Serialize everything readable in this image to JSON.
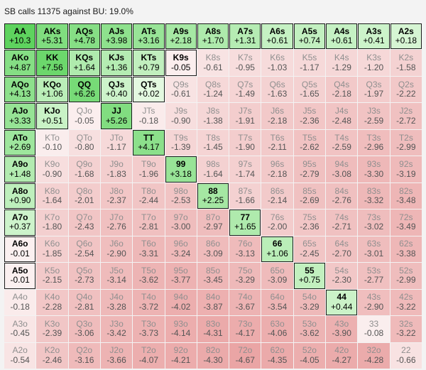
{
  "title": "SB calls 11375 against BU: 19.0%",
  "rows": [
    [
      [
        "AA",
        "+10.3",
        1
      ],
      [
        "AKs",
        "+5.31",
        1
      ],
      [
        "AQs",
        "+4.78",
        1
      ],
      [
        "AJs",
        "+3.98",
        1
      ],
      [
        "ATs",
        "+3.16",
        1
      ],
      [
        "A9s",
        "+2.18",
        1
      ],
      [
        "A8s",
        "+1.70",
        1
      ],
      [
        "A7s",
        "+1.31",
        1
      ],
      [
        "A6s",
        "+0.61",
        1
      ],
      [
        "A5s",
        "+0.74",
        1
      ],
      [
        "A4s",
        "+0.61",
        1
      ],
      [
        "A3s",
        "+0.41",
        1
      ],
      [
        "A2s",
        "+0.18",
        1
      ]
    ],
    [
      [
        "AKo",
        "+4.87",
        1
      ],
      [
        "KK",
        "+7.56",
        1
      ],
      [
        "KQs",
        "+1.64",
        1
      ],
      [
        "KJs",
        "+1.36",
        1
      ],
      [
        "KTs",
        "+0.79",
        1
      ],
      [
        "K9s",
        "-0.05",
        1
      ],
      [
        "K8s",
        "-0.61",
        0
      ],
      [
        "K7s",
        "-0.95",
        0
      ],
      [
        "K6s",
        "-1.03",
        0
      ],
      [
        "K5s",
        "-1.17",
        0
      ],
      [
        "K4s",
        "-1.29",
        0
      ],
      [
        "K3s",
        "-1.20",
        0
      ],
      [
        "K2s",
        "-1.58",
        0
      ]
    ],
    [
      [
        "AQo",
        "+4.13",
        1
      ],
      [
        "KQo",
        "+1.06",
        1
      ],
      [
        "QQ",
        "+6.26",
        1
      ],
      [
        "QJs",
        "+0.40",
        1
      ],
      [
        "QTs",
        "+0.02",
        1
      ],
      [
        "Q9s",
        "-0.61",
        0
      ],
      [
        "Q8s",
        "-1.24",
        0
      ],
      [
        "Q7s",
        "-1.49",
        0
      ],
      [
        "Q6s",
        "-1.63",
        0
      ],
      [
        "Q5s",
        "-1.65",
        0
      ],
      [
        "Q4s",
        "-2.18",
        0
      ],
      [
        "Q3s",
        "-1.97",
        0
      ],
      [
        "Q2s",
        "-2.22",
        0
      ]
    ],
    [
      [
        "AJo",
        "+3.33",
        1
      ],
      [
        "KJo",
        "+0.51",
        1
      ],
      [
        "QJo",
        "-0.05",
        0
      ],
      [
        "JJ",
        "+5.26",
        1
      ],
      [
        "JTs",
        "-0.18",
        0
      ],
      [
        "J9s",
        "-0.90",
        0
      ],
      [
        "J8s",
        "-1.38",
        0
      ],
      [
        "J7s",
        "-1.91",
        0
      ],
      [
        "J6s",
        "-2.18",
        0
      ],
      [
        "J5s",
        "-2.36",
        0
      ],
      [
        "J4s",
        "-2.48",
        0
      ],
      [
        "J3s",
        "-2.59",
        0
      ],
      [
        "J2s",
        "-2.72",
        0
      ]
    ],
    [
      [
        "ATo",
        "+2.69",
        1
      ],
      [
        "KTo",
        "-0.10",
        0
      ],
      [
        "QTo",
        "-0.80",
        0
      ],
      [
        "JTo",
        "-1.17",
        0
      ],
      [
        "TT",
        "+4.17",
        1
      ],
      [
        "T9s",
        "-1.39",
        0
      ],
      [
        "T8s",
        "-1.45",
        0
      ],
      [
        "T7s",
        "-1.90",
        0
      ],
      [
        "T6s",
        "-2.11",
        0
      ],
      [
        "T5s",
        "-2.62",
        0
      ],
      [
        "T4s",
        "-2.59",
        0
      ],
      [
        "T3s",
        "-2.96",
        0
      ],
      [
        "T2s",
        "-2.99",
        0
      ]
    ],
    [
      [
        "A9o",
        "+1.48",
        1
      ],
      [
        "K9o",
        "-0.90",
        0
      ],
      [
        "Q9o",
        "-1.68",
        0
      ],
      [
        "J9o",
        "-1.83",
        0
      ],
      [
        "T9o",
        "-1.96",
        0
      ],
      [
        "99",
        "+3.18",
        1
      ],
      [
        "98s",
        "-1.64",
        0
      ],
      [
        "97s",
        "-1.74",
        0
      ],
      [
        "96s",
        "-2.18",
        0
      ],
      [
        "95s",
        "-2.79",
        0
      ],
      [
        "94s",
        "-3.08",
        0
      ],
      [
        "93s",
        "-3.30",
        0
      ],
      [
        "92s",
        "-3.19",
        0
      ]
    ],
    [
      [
        "A8o",
        "+0.90",
        1
      ],
      [
        "K8o",
        "-1.64",
        0
      ],
      [
        "Q8o",
        "-2.01",
        0
      ],
      [
        "J8o",
        "-2.37",
        0
      ],
      [
        "T8o",
        "-2.44",
        0
      ],
      [
        "98o",
        "-2.53",
        0
      ],
      [
        "88",
        "+2.25",
        1
      ],
      [
        "87s",
        "-1.66",
        0
      ],
      [
        "86s",
        "-2.14",
        0
      ],
      [
        "85s",
        "-2.69",
        0
      ],
      [
        "84s",
        "-2.76",
        0
      ],
      [
        "83s",
        "-3.32",
        0
      ],
      [
        "82s",
        "-3.48",
        0
      ]
    ],
    [
      [
        "A7o",
        "+0.37",
        1
      ],
      [
        "K7o",
        "-1.80",
        0
      ],
      [
        "Q7o",
        "-2.43",
        0
      ],
      [
        "J7o",
        "-2.76",
        0
      ],
      [
        "T7o",
        "-2.81",
        0
      ],
      [
        "97o",
        "-3.00",
        0
      ],
      [
        "87o",
        "-2.97",
        0
      ],
      [
        "77",
        "+1.65",
        1
      ],
      [
        "76s",
        "-2.00",
        0
      ],
      [
        "75s",
        "-2.36",
        0
      ],
      [
        "74s",
        "-2.71",
        0
      ],
      [
        "73s",
        "-3.02",
        0
      ],
      [
        "72s",
        "-3.49",
        0
      ]
    ],
    [
      [
        "A6o",
        "-0.01",
        1
      ],
      [
        "K6o",
        "-1.85",
        0
      ],
      [
        "Q6o",
        "-2.54",
        0
      ],
      [
        "J6o",
        "-2.90",
        0
      ],
      [
        "T6o",
        "-3.31",
        0
      ],
      [
        "96o",
        "-3.24",
        0
      ],
      [
        "86o",
        "-3.09",
        0
      ],
      [
        "76o",
        "-3.13",
        0
      ],
      [
        "66",
        "+1.06",
        1
      ],
      [
        "65s",
        "-2.45",
        0
      ],
      [
        "64s",
        "-2.70",
        0
      ],
      [
        "63s",
        "-3.01",
        0
      ],
      [
        "62s",
        "-3.38",
        0
      ]
    ],
    [
      [
        "A5o",
        "-0.01",
        1
      ],
      [
        "K5o",
        "-2.15",
        0
      ],
      [
        "Q5o",
        "-2.73",
        0
      ],
      [
        "J5o",
        "-3.14",
        0
      ],
      [
        "T5o",
        "-3.62",
        0
      ],
      [
        "95o",
        "-3.77",
        0
      ],
      [
        "85o",
        "-3.45",
        0
      ],
      [
        "75o",
        "-3.29",
        0
      ],
      [
        "65o",
        "-3.09",
        0
      ],
      [
        "55",
        "+0.75",
        1
      ],
      [
        "54s",
        "-2.30",
        0
      ],
      [
        "53s",
        "-2.77",
        0
      ],
      [
        "52s",
        "-2.99",
        0
      ]
    ],
    [
      [
        "A4o",
        "-0.18",
        0
      ],
      [
        "K4o",
        "-2.28",
        0
      ],
      [
        "Q4o",
        "-2.81",
        0
      ],
      [
        "J4o",
        "-3.28",
        0
      ],
      [
        "T4o",
        "-3.72",
        0
      ],
      [
        "94o",
        "-4.02",
        0
      ],
      [
        "84o",
        "-3.87",
        0
      ],
      [
        "74o",
        "-3.67",
        0
      ],
      [
        "64o",
        "-3.54",
        0
      ],
      [
        "54o",
        "-3.29",
        0
      ],
      [
        "44",
        "+0.44",
        1
      ],
      [
        "43s",
        "-2.90",
        0
      ],
      [
        "42s",
        "-3.22",
        0
      ]
    ],
    [
      [
        "A3o",
        "-0.45",
        0
      ],
      [
        "K3o",
        "-2.39",
        0
      ],
      [
        "Q3o",
        "-3.06",
        0
      ],
      [
        "J3o",
        "-3.42",
        0
      ],
      [
        "T3o",
        "-3.73",
        0
      ],
      [
        "93o",
        "-4.14",
        0
      ],
      [
        "83o",
        "-4.31",
        0
      ],
      [
        "73o",
        "-4.17",
        0
      ],
      [
        "63o",
        "-4.06",
        0
      ],
      [
        "53o",
        "-3.62",
        0
      ],
      [
        "43o",
        "-3.90",
        0
      ],
      [
        "33",
        "-0.08",
        0
      ],
      [
        "32s",
        "-3.22",
        0
      ]
    ],
    [
      [
        "A2o",
        "-0.54",
        0
      ],
      [
        "K2o",
        "-2.46",
        0
      ],
      [
        "Q2o",
        "-3.16",
        0
      ],
      [
        "J2o",
        "-3.66",
        0
      ],
      [
        "T2o",
        "-4.07",
        0
      ],
      [
        "92o",
        "-4.21",
        0
      ],
      [
        "82o",
        "-4.30",
        0
      ],
      [
        "72o",
        "-4.67",
        0
      ],
      [
        "62o",
        "-4.35",
        0
      ],
      [
        "52o",
        "-4.05",
        0
      ],
      [
        "42o",
        "-4.27",
        0
      ],
      [
        "32o",
        "-4.28",
        0
      ],
      [
        "22",
        "-0.66",
        0
      ]
    ]
  ],
  "colors": {
    "positive_strong": "#5ed35e",
    "positive_light": "#e9fbe6",
    "negative_light": "#fbf0f0",
    "negative_strong": "#eaa5a5",
    "selected_border": "#1b1b1b"
  }
}
